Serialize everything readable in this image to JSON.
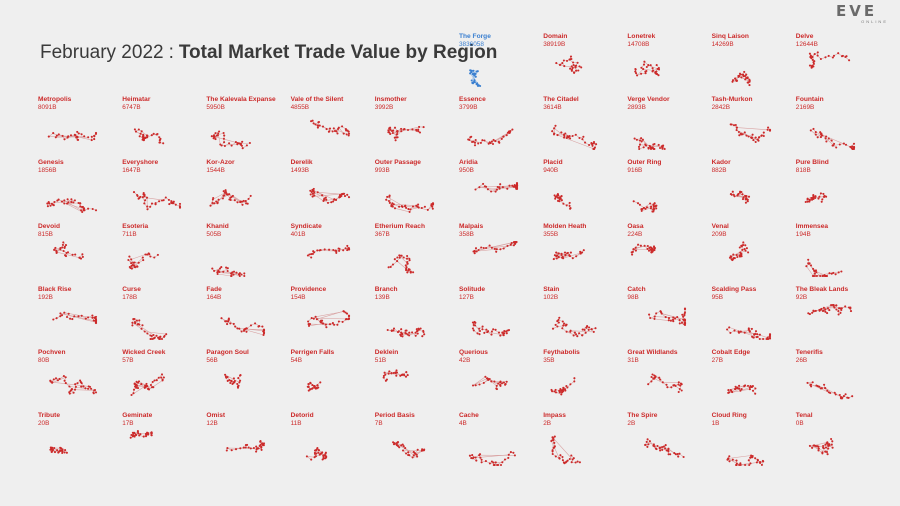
{
  "header": {
    "title_light": "February 2022",
    "separator": ":",
    "title_bold": "Total Market Trade Value by Region"
  },
  "logo": {
    "main": "EVE",
    "sub": "ONLINE"
  },
  "colors": {
    "highlight": "#3a7fd0",
    "default": "#cc2a2a",
    "edge": "#d9a3a3",
    "background": "#efefef"
  },
  "chart_data": {
    "type": "small-multiples",
    "title": "February 2022 : Total Market Trade Value by Region",
    "unit": "B",
    "regions": [
      {
        "name": "The Forge",
        "value": "3836058"
      },
      {
        "name": "Domain",
        "value": "38919B"
      },
      {
        "name": "Lonetrek",
        "value": "14708B"
      },
      {
        "name": "Sinq Laison",
        "value": "14269B"
      },
      {
        "name": "Delve",
        "value": "12644B"
      },
      {
        "name": "Metropolis",
        "value": "8091B"
      },
      {
        "name": "Heimatar",
        "value": "6747B"
      },
      {
        "name": "The Kalevala Expanse",
        "value": "5950B"
      },
      {
        "name": "Vale of the Silent",
        "value": "4855B"
      },
      {
        "name": "Insmother",
        "value": "3992B"
      },
      {
        "name": "Essence",
        "value": "3799B"
      },
      {
        "name": "The Citadel",
        "value": "3614B"
      },
      {
        "name": "Verge Vendor",
        "value": "2893B"
      },
      {
        "name": "Tash-Murkon",
        "value": "2842B"
      },
      {
        "name": "Fountain",
        "value": "2169B"
      },
      {
        "name": "Genesis",
        "value": "1856B"
      },
      {
        "name": "Everyshore",
        "value": "1647B"
      },
      {
        "name": "Kor-Azor",
        "value": "1544B"
      },
      {
        "name": "Derelik",
        "value": "1493B"
      },
      {
        "name": "Outer Passage",
        "value": "993B"
      },
      {
        "name": "Aridia",
        "value": "950B"
      },
      {
        "name": "Placid",
        "value": "940B"
      },
      {
        "name": "Outer Ring",
        "value": "916B"
      },
      {
        "name": "Kador",
        "value": "882B"
      },
      {
        "name": "Pure Blind",
        "value": "818B"
      },
      {
        "name": "Devoid",
        "value": "815B"
      },
      {
        "name": "Esoteria",
        "value": "711B"
      },
      {
        "name": "Khanid",
        "value": "505B"
      },
      {
        "name": "Syndicate",
        "value": "401B"
      },
      {
        "name": "Etherium Reach",
        "value": "367B"
      },
      {
        "name": "Malpais",
        "value": "358B"
      },
      {
        "name": "Molden Heath",
        "value": "355B"
      },
      {
        "name": "Oasa",
        "value": "224B"
      },
      {
        "name": "Venal",
        "value": "209B"
      },
      {
        "name": "Immensea",
        "value": "194B"
      },
      {
        "name": "Black Rise",
        "value": "192B"
      },
      {
        "name": "Curse",
        "value": "178B"
      },
      {
        "name": "Fade",
        "value": "164B"
      },
      {
        "name": "Providence",
        "value": "154B"
      },
      {
        "name": "Branch",
        "value": "139B"
      },
      {
        "name": "Solitude",
        "value": "127B"
      },
      {
        "name": "Stain",
        "value": "102B"
      },
      {
        "name": "Catch",
        "value": "98B"
      },
      {
        "name": "Scalding Pass",
        "value": "95B"
      },
      {
        "name": "The Bleak Lands",
        "value": "92B"
      },
      {
        "name": "Pochven",
        "value": "80B"
      },
      {
        "name": "Wicked Creek",
        "value": "57B"
      },
      {
        "name": "Paragon Soul",
        "value": "56B"
      },
      {
        "name": "Perrigen Falls",
        "value": "54B"
      },
      {
        "name": "Deklein",
        "value": "51B"
      },
      {
        "name": "Querious",
        "value": "42B"
      },
      {
        "name": "Feythabolis",
        "value": "35B"
      },
      {
        "name": "Great Wildlands",
        "value": "31B"
      },
      {
        "name": "Cobalt Edge",
        "value": "27B"
      },
      {
        "name": "Tenerifis",
        "value": "26B"
      },
      {
        "name": "Tribute",
        "value": "20B"
      },
      {
        "name": "Geminate",
        "value": "17B"
      },
      {
        "name": "Omist",
        "value": "12B"
      },
      {
        "name": "Detorid",
        "value": "11B"
      },
      {
        "name": "Period Basis",
        "value": "7B"
      },
      {
        "name": "Cache",
        "value": "4B"
      },
      {
        "name": "Impass",
        "value": "2B"
      },
      {
        "name": "The Spire",
        "value": "2B"
      },
      {
        "name": "Cloud Ring",
        "value": "1B"
      },
      {
        "name": "Tenal",
        "value": "0B"
      }
    ]
  }
}
